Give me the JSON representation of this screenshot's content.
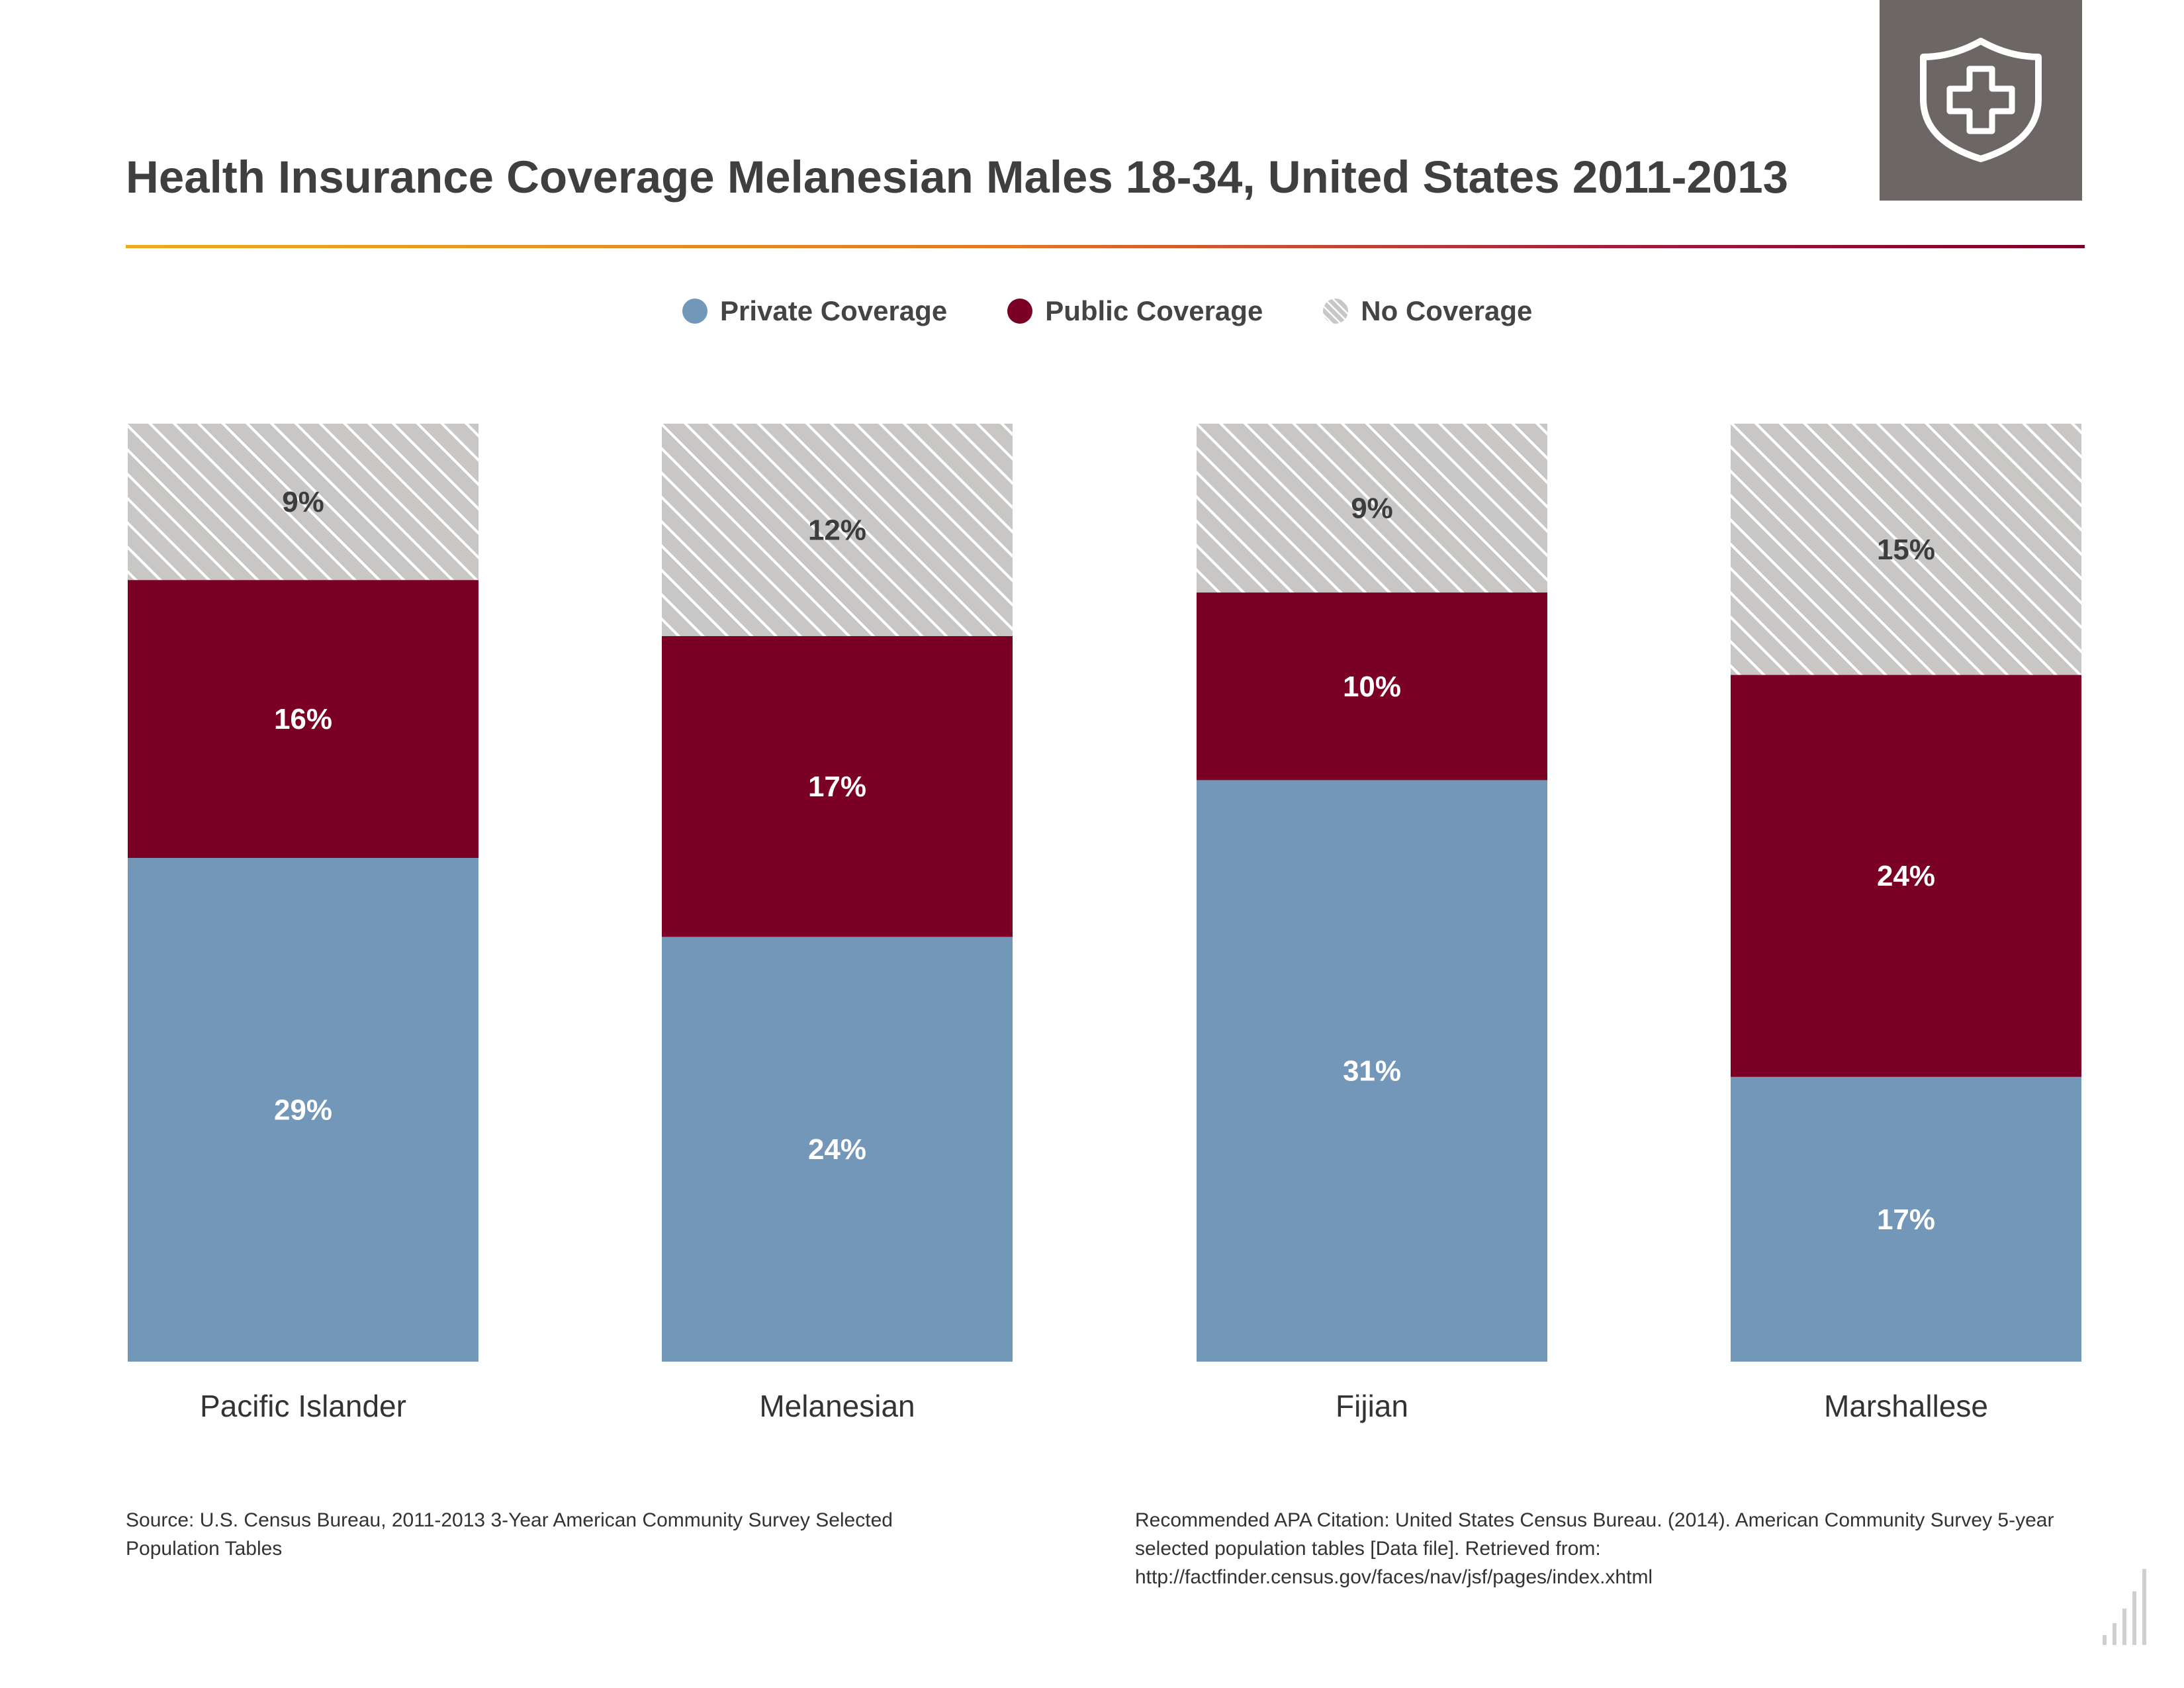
{
  "header": {
    "title": "Health Insurance Coverage Melanesian Males 18-34, United States 2011-2013",
    "icon": "shield-medical-cross-icon"
  },
  "legend": [
    {
      "label": "Private Coverage",
      "color": "#7397b9",
      "pattern": "solid"
    },
    {
      "label": "Public Coverage",
      "color": "#7a0026",
      "pattern": "solid"
    },
    {
      "label": "No Coverage",
      "color": "#c9c7c5",
      "pattern": "hatched"
    }
  ],
  "chart_data": {
    "type": "bar",
    "stacked": true,
    "categories": [
      "Pacific Islander",
      "Melanesian",
      "Fijian",
      "Marshallese"
    ],
    "series": [
      {
        "name": "Private Coverage",
        "color": "#7397b9",
        "values": [
          29,
          24,
          31,
          17
        ],
        "labels": [
          "29%",
          "24%",
          "31%",
          "17%"
        ]
      },
      {
        "name": "Public Coverage",
        "color": "#7a0026",
        "values": [
          16,
          17,
          10,
          24
        ],
        "labels": [
          "16%",
          "17%",
          "10%",
          "24%"
        ]
      },
      {
        "name": "No Coverage",
        "color": "#c9c7c5",
        "values": [
          9,
          12,
          9,
          15
        ],
        "labels": [
          "9%",
          "12%",
          "9%",
          "15%"
        ]
      }
    ],
    "unit": "%",
    "normalized": true,
    "grid": false,
    "legend_position": "top-center"
  },
  "footer": {
    "source": "Source: U.S. Census Bureau, 2011-2013 3-Year American Community Survey Selected Population Tables",
    "citation": "Recommended APA Citation: United States Census Bureau. (2014). American Community Survey 5-year selected population tables [Data file]. Retrieved from: http://factfinder.census.gov/faces/nav/jsf/pages/index.xhtml",
    "logo_icon": "bar-chart-logo-icon"
  }
}
